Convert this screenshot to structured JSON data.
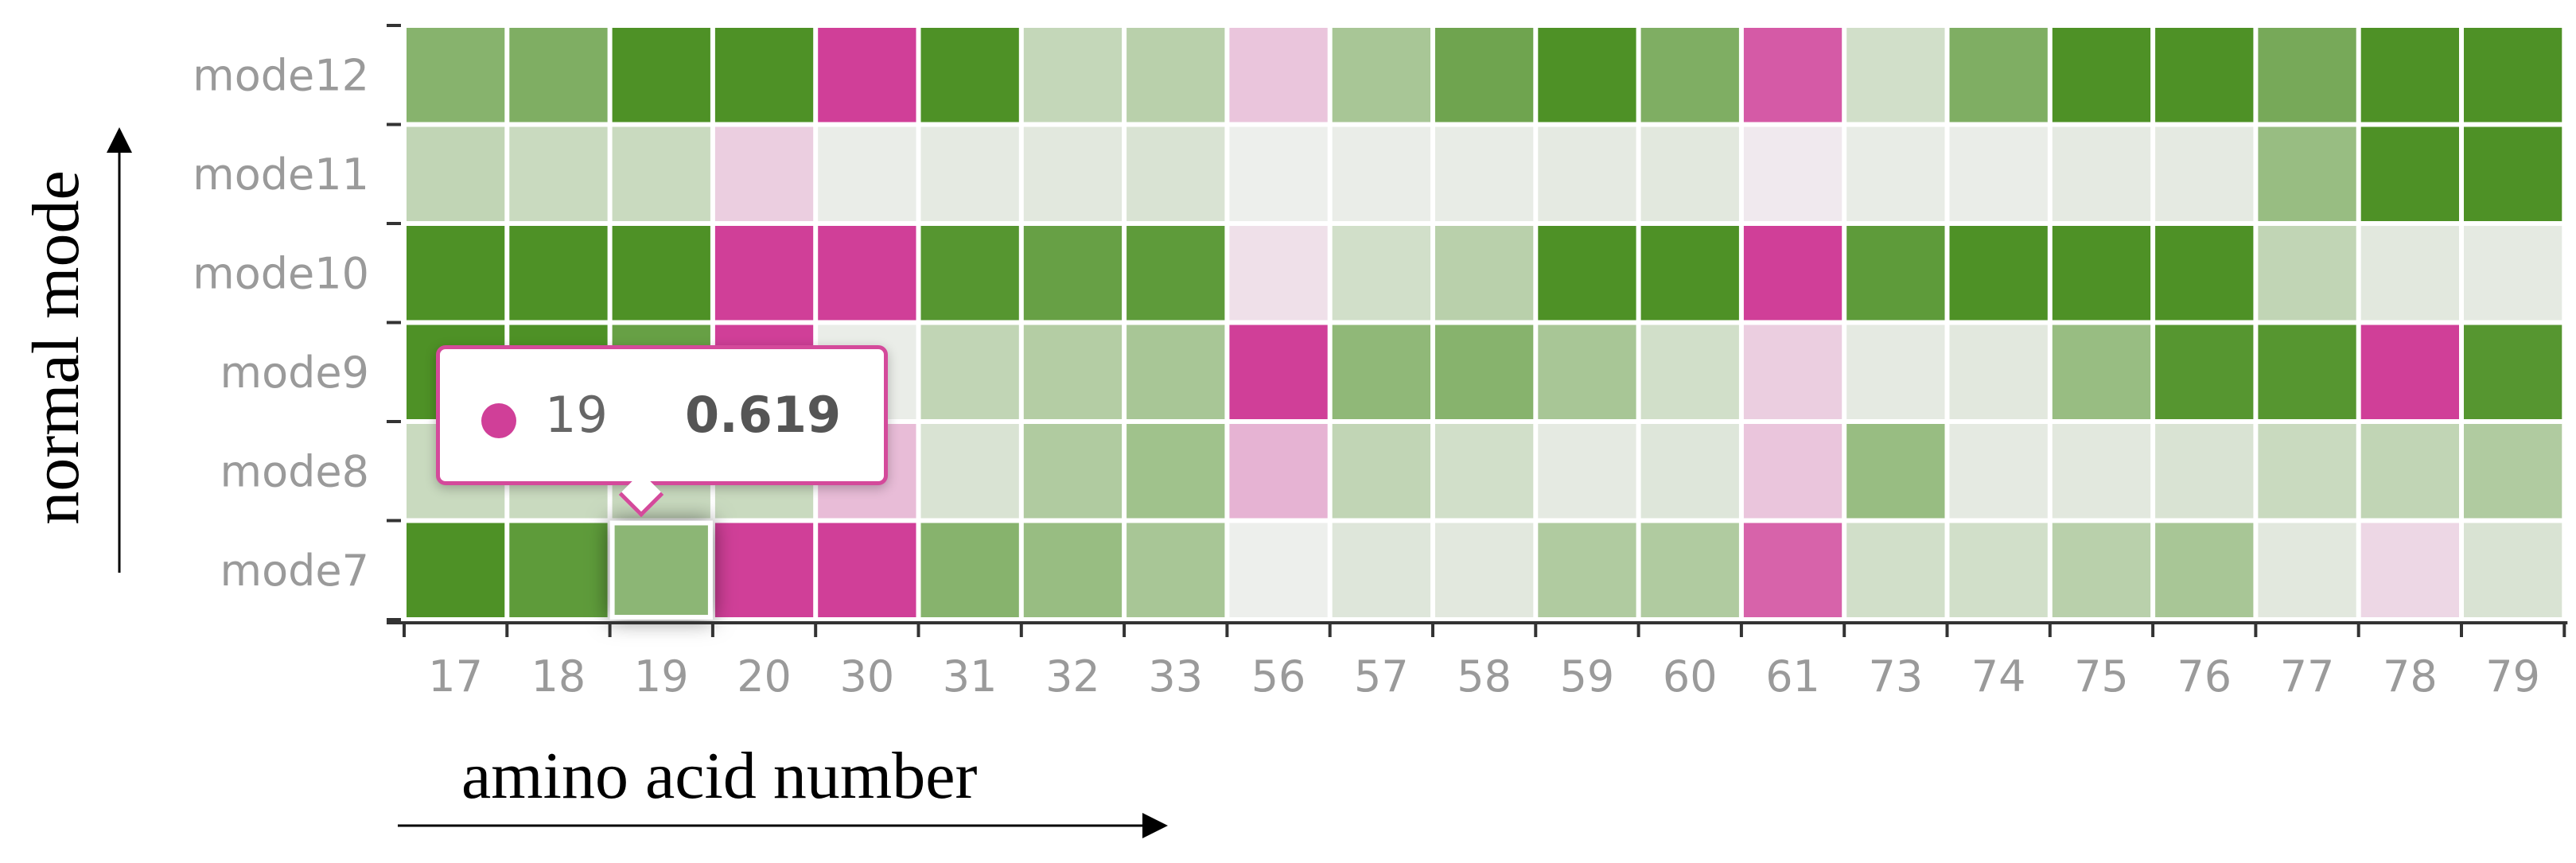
{
  "chart_data": {
    "type": "heatmap",
    "xlabel": "amino acid number",
    "ylabel": "normal mode",
    "x": [
      "17",
      "18",
      "19",
      "20",
      "30",
      "31",
      "32",
      "33",
      "56",
      "57",
      "58",
      "59",
      "60",
      "61",
      "73",
      "74",
      "75",
      "76",
      "77",
      "78",
      "79"
    ],
    "y": [
      "mode7",
      "mode8",
      "mode9",
      "mode10",
      "mode11",
      "mode12"
    ],
    "colors": {
      "high_positive": "#4e9126",
      "neutral": "#f2f2f2",
      "negative": "#d03f98"
    },
    "values": [
      [
        1.0,
        0.9,
        0.619,
        -1.0,
        -1.0,
        0.65,
        0.55,
        0.45,
        0.03,
        0.12,
        0.1,
        0.4,
        0.4,
        -0.8,
        0.2,
        0.2,
        0.35,
        0.45,
        0.1,
        -0.15,
        0.15
      ],
      [
        0.25,
        0.25,
        0.25,
        0.25,
        -0.3,
        0.15,
        0.4,
        0.5,
        -0.35,
        0.3,
        0.2,
        0.08,
        0.12,
        -0.25,
        0.55,
        0.08,
        0.1,
        0.15,
        0.25,
        0.3,
        0.4
      ],
      [
        1.0,
        1.0,
        0.85,
        -1.0,
        0.05,
        0.3,
        0.38,
        0.45,
        -1.0,
        0.6,
        0.65,
        0.45,
        0.2,
        -0.2,
        0.08,
        0.1,
        0.55,
        0.95,
        0.95,
        -1.0,
        0.95
      ],
      [
        1.0,
        1.0,
        1.0,
        -1.0,
        -1.0,
        0.95,
        0.85,
        0.9,
        -0.1,
        0.2,
        0.35,
        1.0,
        1.0,
        -1.0,
        0.9,
        1.0,
        1.0,
        1.0,
        0.3,
        0.1,
        0.08
      ],
      [
        0.3,
        0.25,
        0.25,
        -0.2,
        0.05,
        0.08,
        0.1,
        0.15,
        0.03,
        0.05,
        0.06,
        0.08,
        0.1,
        -0.05,
        0.06,
        0.05,
        0.08,
        0.08,
        0.55,
        1.0,
        1.0
      ],
      [
        0.65,
        0.7,
        1.0,
        1.0,
        -1.0,
        1.0,
        0.28,
        0.35,
        -0.25,
        0.45,
        0.8,
        1.0,
        0.7,
        -0.85,
        0.2,
        0.7,
        1.0,
        1.0,
        0.75,
        1.0,
        1.0
      ]
    ],
    "highlight": {
      "x": "19",
      "y": "mode7"
    }
  },
  "tooltip": {
    "x": "19",
    "value": "0.619"
  }
}
